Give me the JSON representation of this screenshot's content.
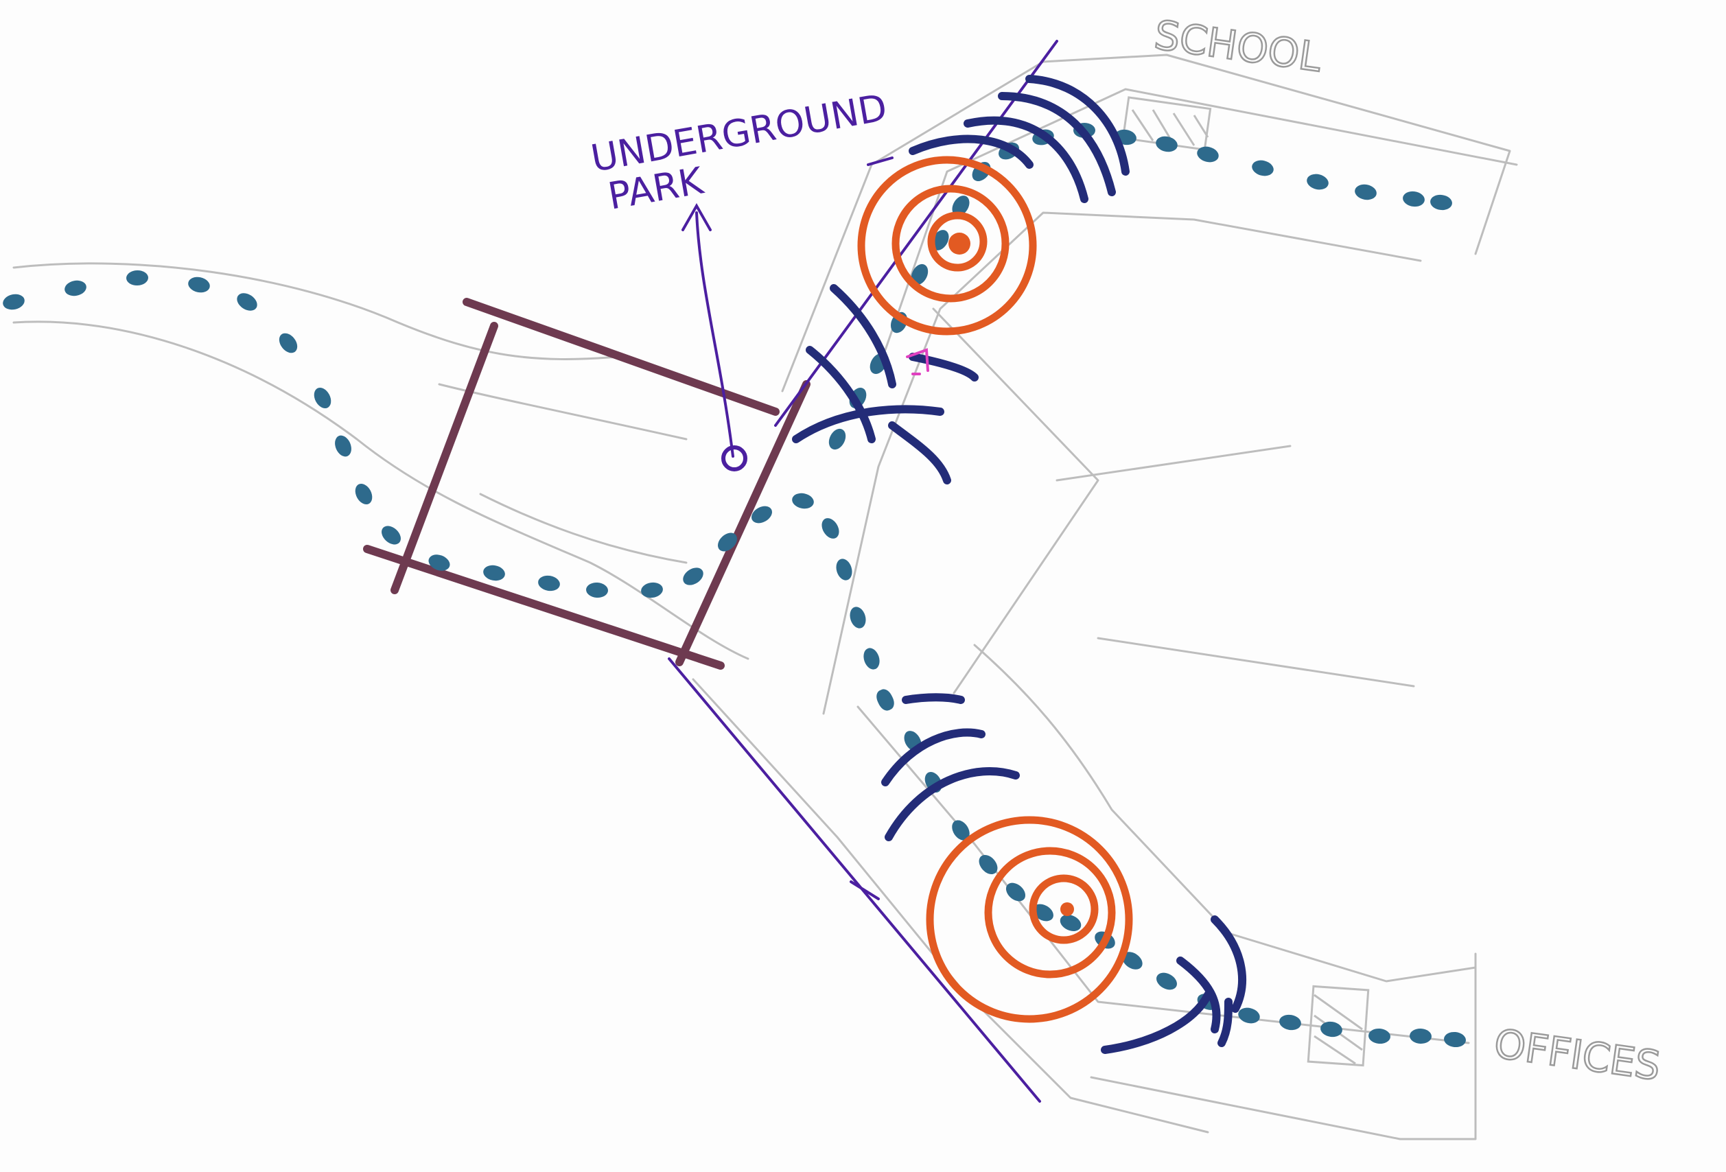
{
  "labels": {
    "park_line1": "UNDERGROUND",
    "park_line2": "PARK",
    "school": "SCHOOL",
    "offices": "OFFICES"
  },
  "colors": {
    "pencil": "#bdbdbd",
    "path_dots": "#2e6a8c",
    "waves": "#232c78",
    "target": "#e25a22",
    "plaza": "#6e3a50",
    "purple_ink": "#4b1fa0",
    "magenta_ink": "#e040c0"
  }
}
